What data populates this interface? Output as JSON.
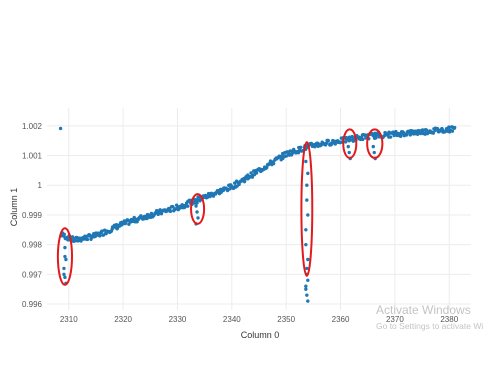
{
  "chart_data": {
    "type": "scatter",
    "title": "",
    "xlabel": "Column 0",
    "ylabel": "Column 1",
    "xlim": [
      2306,
      2384
    ],
    "ylim": [
      0.9958,
      1.0026
    ],
    "grid": true,
    "x_ticks": [
      2310,
      2320,
      2330,
      2340,
      2350,
      2360,
      2370,
      2380
    ],
    "y_ticks": [
      0.996,
      0.997,
      0.998,
      0.999,
      1,
      1.001,
      1.002
    ],
    "x_tick_labels": [
      "2310",
      "2320",
      "2330",
      "2340",
      "2350",
      "2360",
      "2370",
      "2380"
    ],
    "y_tick_labels": [
      "0.996",
      "0.997",
      "0.998",
      "0.999",
      "1",
      "1.001",
      "1.002"
    ],
    "point_color": "#1f77b4",
    "highlight_color": "#e31a1c",
    "trend": [
      {
        "x": 2308.5,
        "y": 0.99835
      },
      {
        "x": 2311,
        "y": 0.99815
      },
      {
        "x": 2315,
        "y": 0.9983
      },
      {
        "x": 2320,
        "y": 0.9987
      },
      {
        "x": 2325,
        "y": 0.999
      },
      {
        "x": 2330,
        "y": 0.99925
      },
      {
        "x": 2335,
        "y": 0.9996
      },
      {
        "x": 2340,
        "y": 0.99995
      },
      {
        "x": 2345,
        "y": 1.0005
      },
      {
        "x": 2350,
        "y": 1.00105
      },
      {
        "x": 2355,
        "y": 1.00135
      },
      {
        "x": 2360,
        "y": 1.0015
      },
      {
        "x": 2365,
        "y": 1.00165
      },
      {
        "x": 2370,
        "y": 1.00172
      },
      {
        "x": 2375,
        "y": 1.0018
      },
      {
        "x": 2381,
        "y": 1.0019
      }
    ],
    "outlier_groups": [
      {
        "x": 2309.3,
        "y_values": [
          0.9983,
          0.9979,
          0.9975,
          0.9972,
          0.9969,
          0.9967,
          0.997,
          0.9976
        ]
      },
      {
        "x": 2333.6,
        "y_values": [
          0.9993,
          0.9991,
          0.9989,
          0.9987,
          0.9994,
          0.9996
        ]
      },
      {
        "x": 2353.8,
        "y_values": [
          1.0008,
          1.0,
          0.999,
          0.998,
          0.9972,
          0.9968,
          0.9965,
          0.9963,
          0.9961,
          0.9966,
          0.997,
          0.9975,
          0.9985,
          0.9995,
          1.0004
        ]
      },
      {
        "x": 2361.6,
        "y_values": [
          1.0013,
          1.0011,
          1.0009
        ]
      },
      {
        "x": 2366.2,
        "y_values": [
          1.0013,
          1.0011,
          1.0009
        ]
      }
    ],
    "annotations": [
      {
        "shape": "ellipse",
        "cx": 2309.3,
        "cy": 0.9976,
        "rx": 1.3,
        "ry": 0.00095
      },
      {
        "shape": "ellipse",
        "cx": 2333.7,
        "cy": 0.9992,
        "rx": 1.2,
        "ry": 0.0005
      },
      {
        "shape": "ellipse",
        "cx": 2353.8,
        "cy": 0.9992,
        "rx": 1.0,
        "ry": 0.00225
      },
      {
        "shape": "ellipse",
        "cx": 2361.7,
        "cy": 1.0014,
        "rx": 1.2,
        "ry": 0.00048
      },
      {
        "shape": "ellipse",
        "cx": 2366.3,
        "cy": 1.0014,
        "rx": 1.4,
        "ry": 0.00048
      }
    ]
  },
  "watermark": {
    "line1": "Activate Windows",
    "line2": "Go to Settings to activate Wi"
  }
}
